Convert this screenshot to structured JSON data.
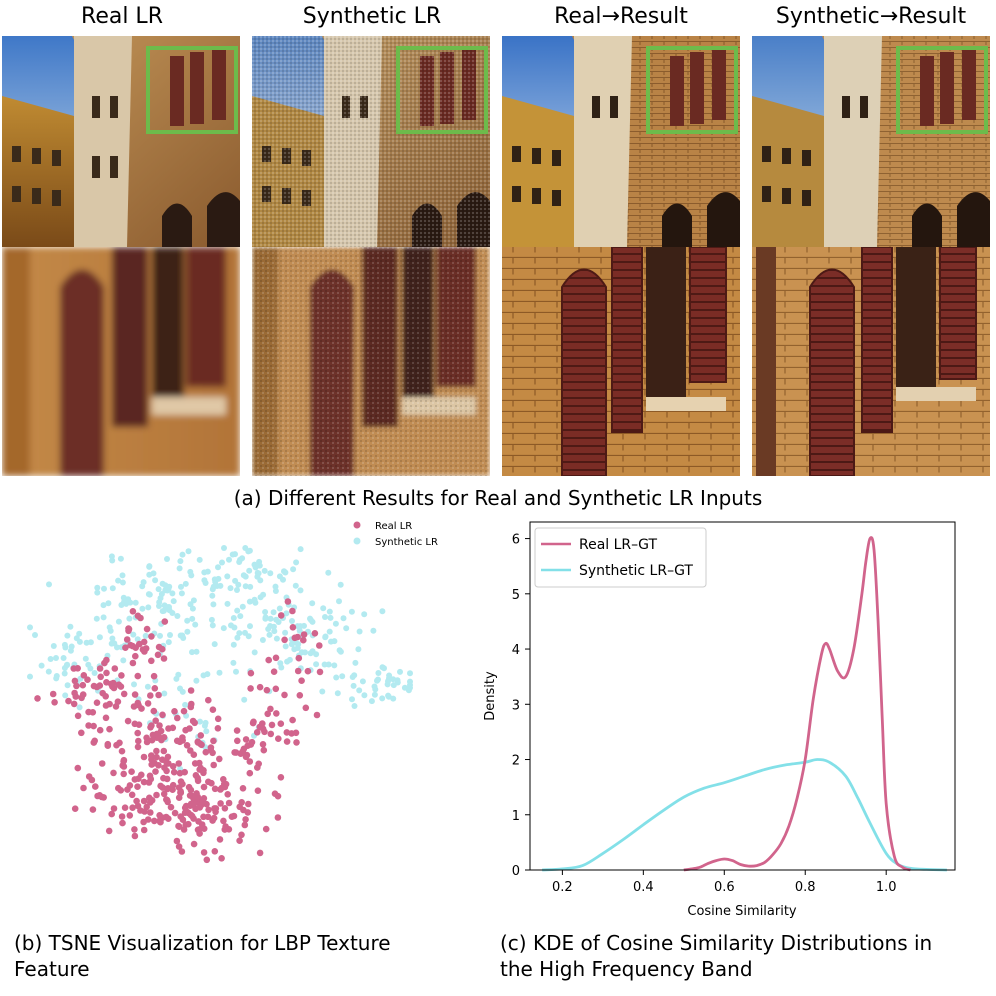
{
  "panel_a": {
    "columns": [
      "Real LR",
      "Synthetic LR",
      "Real→Result",
      "Synthetic→Result"
    ],
    "caption": "(a) Different Results for Real and Synthetic LR Inputs",
    "highlight_color": "#6dbb4b"
  },
  "panel_b": {
    "caption_line1": "(b) TSNE Visualization for LBP Texture",
    "caption_line2": "Feature"
  },
  "panel_c": {
    "caption_line1": "(c) KDE of Cosine Similarity Distributions in",
    "caption_line2": "the High Frequency Band"
  },
  "chart_data": [
    {
      "type": "scatter",
      "legend": [
        {
          "name": "Real LR",
          "color": "#d1648c"
        },
        {
          "name": "Synthetic LR",
          "color": "#b3eaf0"
        }
      ],
      "legend_position": "top-right",
      "axes_visible": false,
      "xlim": [
        0,
        100
      ],
      "ylim": [
        0,
        100
      ],
      "series": [
        {
          "name": "Real LR",
          "color": "#d1648c",
          "clusters": [
            {
              "cx": 40,
              "cy": 30,
              "sx": 11,
              "sy": 9,
              "n": 260
            },
            {
              "cx": 32,
              "cy": 50,
              "sx": 10,
              "sy": 6,
              "n": 50
            },
            {
              "cx": 18,
              "cy": 60,
              "sx": 6,
              "sy": 4,
              "n": 40
            },
            {
              "cx": 30,
              "cy": 72,
              "sx": 4,
              "sy": 4,
              "n": 25
            },
            {
              "cx": 63,
              "cy": 50,
              "sx": 5,
              "sy": 7,
              "n": 35
            },
            {
              "cx": 68,
              "cy": 68,
              "sx": 5,
              "sy": 7,
              "n": 20
            }
          ]
        },
        {
          "name": "Synthetic LR",
          "color": "#b3eaf0",
          "clusters": [
            {
              "cx": 40,
              "cy": 85,
              "sx": 12,
              "sy": 7,
              "n": 120
            },
            {
              "cx": 15,
              "cy": 68,
              "sx": 7,
              "sy": 5,
              "n": 50
            },
            {
              "cx": 72,
              "cy": 75,
              "sx": 10,
              "sy": 6,
              "n": 90
            },
            {
              "cx": 92,
              "cy": 60,
              "sx": 6,
              "sy": 3,
              "n": 40
            },
            {
              "cx": 60,
              "cy": 92,
              "sx": 8,
              "sy": 4,
              "n": 40
            },
            {
              "cx": 45,
              "cy": 55,
              "sx": 10,
              "sy": 8,
              "n": 40
            }
          ]
        }
      ]
    },
    {
      "type": "line",
      "xlabel": "Cosine Similarity",
      "ylabel": "Density",
      "xlim": [
        0.12,
        1.17
      ],
      "ylim": [
        0,
        6.3
      ],
      "xticks": [
        "0.2",
        "0.4",
        "0.6",
        "0.8",
        "1.0"
      ],
      "yticks": [
        "0",
        "1",
        "2",
        "3",
        "4",
        "5",
        "6"
      ],
      "legend_position": "top-left",
      "series": [
        {
          "name": "Real LR–GT",
          "color": "#d1648c",
          "x": [
            0.5,
            0.52,
            0.54,
            0.56,
            0.58,
            0.6,
            0.62,
            0.64,
            0.66,
            0.68,
            0.7,
            0.72,
            0.74,
            0.76,
            0.78,
            0.8,
            0.82,
            0.84,
            0.85,
            0.86,
            0.88,
            0.9,
            0.92,
            0.94,
            0.95,
            0.96,
            0.97,
            0.98,
            0.99,
            1.0,
            1.02,
            1.04,
            1.06
          ],
          "y": [
            0.0,
            0.02,
            0.05,
            0.12,
            0.17,
            0.2,
            0.17,
            0.1,
            0.07,
            0.08,
            0.14,
            0.28,
            0.48,
            0.8,
            1.3,
            2.0,
            3.1,
            3.9,
            4.1,
            4.0,
            3.6,
            3.5,
            4.0,
            5.0,
            5.6,
            6.0,
            5.8,
            4.5,
            2.8,
            1.2,
            0.25,
            0.05,
            0.0
          ]
        },
        {
          "name": "Synthetic LR–GT",
          "color": "#83e0e8",
          "x": [
            0.15,
            0.2,
            0.25,
            0.3,
            0.35,
            0.4,
            0.45,
            0.5,
            0.55,
            0.6,
            0.65,
            0.7,
            0.75,
            0.8,
            0.83,
            0.86,
            0.9,
            0.93,
            0.96,
            1.0,
            1.03,
            1.06,
            1.1,
            1.15
          ],
          "y": [
            0.0,
            0.02,
            0.08,
            0.3,
            0.55,
            0.82,
            1.08,
            1.32,
            1.48,
            1.58,
            1.7,
            1.82,
            1.9,
            1.95,
            2.0,
            1.95,
            1.7,
            1.3,
            0.85,
            0.3,
            0.1,
            0.03,
            0.01,
            0.0
          ]
        }
      ]
    }
  ]
}
